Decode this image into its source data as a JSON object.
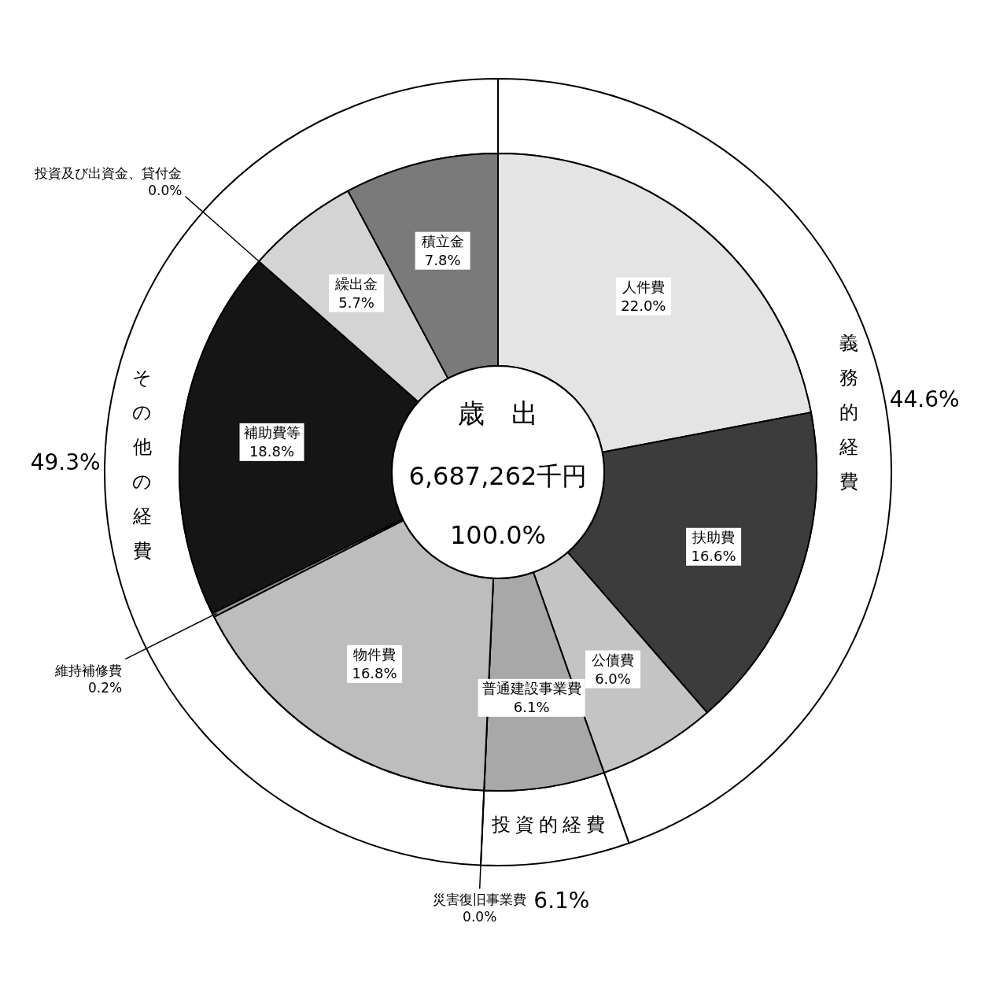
{
  "chart_data": [
    {
      "type": "donut",
      "categories": [
        "義務的経費",
        "投資的経費",
        "その他の経費"
      ],
      "values": [
        44.6,
        6.1,
        49.3
      ],
      "colors": [
        "#ffffff",
        "#ffffff",
        "#ffffff"
      ],
      "value_labels": [
        "44.6%",
        "6.1%",
        "49.3%"
      ]
    },
    {
      "type": "donut",
      "title": "歳出",
      "annotations": [
        "6,687,262千円",
        "100.0%"
      ],
      "categories": [
        "人件費",
        "扶助費",
        "公債費",
        "普通建設事業費",
        "災害復旧事業費",
        "物件費",
        "維持補修費",
        "補助費等",
        "投資及び出資金、貸付金",
        "繰出金",
        "積立金"
      ],
      "values": [
        22.0,
        16.6,
        6.0,
        6.1,
        0.0,
        16.8,
        0.2,
        18.8,
        0.0,
        5.7,
        7.8
      ],
      "colors": [
        "#e4e4e4",
        "#3c3c3c",
        "#c4c4c4",
        "#a8a8a8",
        "#888888",
        "#bdbdbd",
        "#909090",
        "#151515",
        "#707070",
        "#d4d4d4",
        "#7a7a7a"
      ],
      "value_labels": [
        "22.0%",
        "16.6%",
        "6.0%",
        "6.1%",
        "0.0%",
        "16.8%",
        "0.2%",
        "18.8%",
        "0.0%",
        "5.7%",
        "7.8%"
      ]
    }
  ]
}
